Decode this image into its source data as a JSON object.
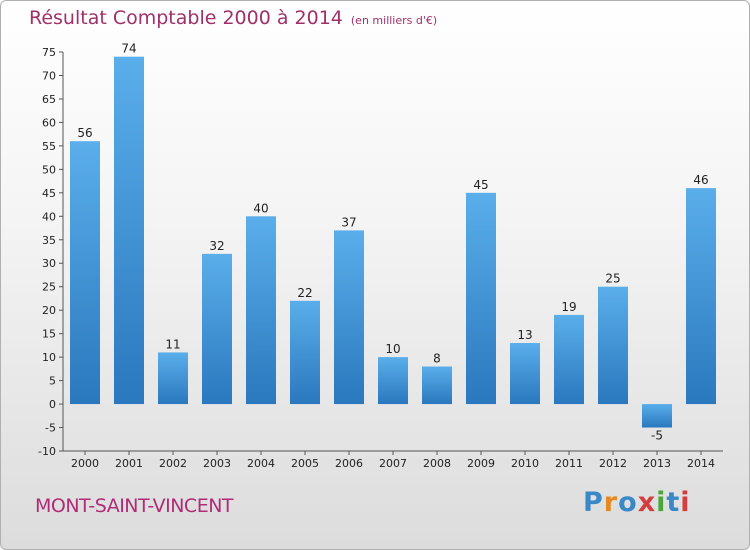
{
  "chart_data": {
    "type": "bar",
    "title": "Résultat Comptable 2000 à 2014",
    "subtitle": "(en milliers d'€)",
    "categories": [
      "2000",
      "2001",
      "2002",
      "2003",
      "2004",
      "2005",
      "2006",
      "2007",
      "2008",
      "2009",
      "2010",
      "2011",
      "2012",
      "2013",
      "2014"
    ],
    "values": [
      56,
      74,
      11,
      32,
      40,
      22,
      37,
      10,
      8,
      45,
      13,
      19,
      25,
      -5,
      46
    ],
    "ylim": [
      -10,
      75
    ],
    "yticks": [
      -10,
      -5,
      0,
      5,
      10,
      15,
      20,
      25,
      30,
      35,
      40,
      45,
      50,
      55,
      60,
      65,
      70,
      75
    ],
    "grid": false,
    "bar_color": "#3a8fd6"
  },
  "footer": {
    "place": "MONT-SAINT-VINCENT",
    "logo": "Proxiti",
    "logo_colors": [
      "#3b88c8",
      "#e58a1f",
      "#3b88c8",
      "#d43d3d",
      "#4aa83a",
      "#3b88c8",
      "#d43d3d"
    ]
  }
}
